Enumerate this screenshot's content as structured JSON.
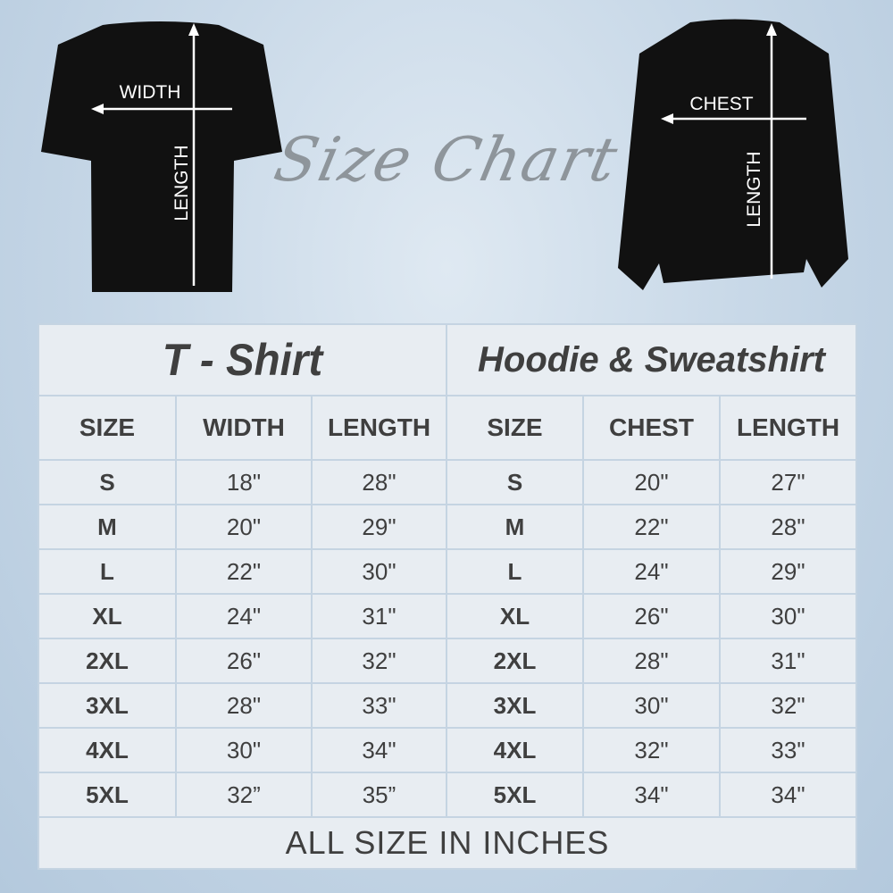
{
  "header": {
    "title": "Size Chart"
  },
  "tshirt_graphic": {
    "width_label": "WIDTH",
    "length_label": "LENGTH"
  },
  "hoodie_graphic": {
    "chest_label": "CHEST",
    "length_label": "LENGTH"
  },
  "table": {
    "tshirt_title": "T - Shirt",
    "hoodie_title": "Hoodie & Sweatshirt",
    "tshirt_headers": [
      "SIZE",
      "WIDTH",
      "LENGTH"
    ],
    "hoodie_headers": [
      "SIZE",
      "CHEST",
      "LENGTH"
    ],
    "rows": [
      {
        "t_size": "S",
        "t_width": "18\"",
        "t_length": "28\"",
        "h_size": "S",
        "h_chest": "20\"",
        "h_length": "27\""
      },
      {
        "t_size": "M",
        "t_width": "20\"",
        "t_length": "29\"",
        "h_size": "M",
        "h_chest": "22\"",
        "h_length": "28\""
      },
      {
        "t_size": "L",
        "t_width": "22\"",
        "t_length": "30\"",
        "h_size": "L",
        "h_chest": "24\"",
        "h_length": "29\""
      },
      {
        "t_size": "XL",
        "t_width": "24\"",
        "t_length": "31\"",
        "h_size": "XL",
        "h_chest": "26\"",
        "h_length": "30\""
      },
      {
        "t_size": "2XL",
        "t_width": "26\"",
        "t_length": "32\"",
        "h_size": "2XL",
        "h_chest": "28\"",
        "h_length": "31\""
      },
      {
        "t_size": "3XL",
        "t_width": "28\"",
        "t_length": "33\"",
        "h_size": "3XL",
        "h_chest": "30\"",
        "h_length": "32\""
      },
      {
        "t_size": "4XL",
        "t_width": "30\"",
        "t_length": "34\"",
        "h_size": "4XL",
        "h_chest": "32\"",
        "h_length": "33\""
      },
      {
        "t_size": "5XL",
        "t_width": "32”",
        "t_length": "35”",
        "h_size": "5XL",
        "h_chest": "34\"",
        "h_length": "34\""
      }
    ],
    "footer": "ALL SIZE IN INCHES"
  }
}
